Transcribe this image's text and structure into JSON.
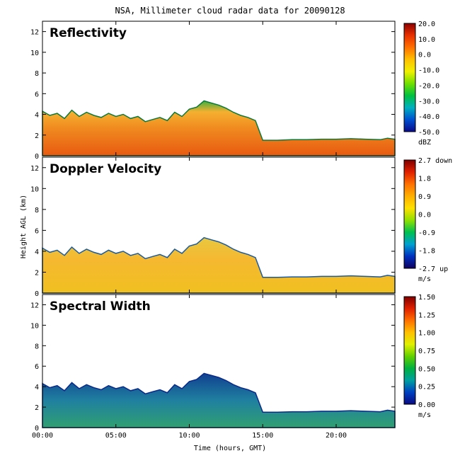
{
  "title": "NSA, Millimeter cloud radar data for 20090128",
  "xlabel": "Time (hours, GMT)",
  "ylabel": "Height AGL (km)",
  "chart_data": [
    {
      "type": "heatmap",
      "name": "Reflectivity",
      "x_ticks": [
        "00:00",
        "05:00",
        "10:00",
        "15:00",
        "20:00"
      ],
      "x_tick_values": [
        0,
        5,
        10,
        15,
        20
      ],
      "xlim": [
        0,
        24
      ],
      "y_ticks": [
        0,
        2,
        4,
        6,
        8,
        10,
        12
      ],
      "ylim": [
        0,
        13
      ],
      "colorbar": {
        "ticks": [
          "20.0",
          "10.0",
          "0.0",
          "-10.0",
          "-20.0",
          "-30.0",
          "-40.0",
          "-50.0"
        ],
        "range": [
          -50,
          20
        ],
        "units": "dBZ"
      }
    },
    {
      "type": "heatmap",
      "name": "Doppler Velocity",
      "x_ticks": [
        "00:00",
        "05:00",
        "10:00",
        "15:00",
        "20:00"
      ],
      "x_tick_values": [
        0,
        5,
        10,
        15,
        20
      ],
      "xlim": [
        0,
        24
      ],
      "y_ticks": [
        0,
        2,
        4,
        6,
        8,
        10,
        12
      ],
      "ylim": [
        0,
        13
      ],
      "colorbar": {
        "ticks": [
          "2.7 down",
          "1.8",
          "0.9",
          "0.0",
          "-0.9",
          "-1.8",
          "-2.7 up"
        ],
        "range": [
          -2.7,
          2.7
        ],
        "units": "m/s"
      }
    },
    {
      "type": "heatmap",
      "name": "Spectral Width",
      "x_ticks": [
        "00:00",
        "05:00",
        "10:00",
        "15:00",
        "20:00"
      ],
      "x_tick_values": [
        0,
        5,
        10,
        15,
        20
      ],
      "xlim": [
        0,
        24
      ],
      "y_ticks": [
        0,
        2,
        4,
        6,
        8,
        10,
        12
      ],
      "ylim": [
        0,
        13
      ],
      "colorbar": {
        "ticks": [
          "1.50",
          "1.25",
          "1.00",
          "0.75",
          "0.50",
          "0.25",
          "0.00"
        ],
        "range": [
          0,
          1.5
        ],
        "units": "m/s"
      }
    }
  ],
  "cloud_profile": {
    "hours": [
      0,
      0.5,
      1,
      1.5,
      2,
      2.5,
      3,
      3.5,
      4,
      4.5,
      5,
      5.5,
      6,
      6.5,
      7,
      7.5,
      8,
      8.5,
      9,
      9.5,
      10,
      10.5,
      11,
      11.5,
      12,
      12.5,
      13,
      13.5,
      14,
      14.5,
      15,
      16,
      17,
      18,
      19,
      20,
      21,
      22,
      23,
      23.5,
      24
    ],
    "top_km": [
      4.3,
      3.9,
      4.1,
      3.6,
      4.4,
      3.8,
      4.2,
      3.9,
      3.7,
      4.1,
      3.8,
      4.0,
      3.6,
      3.8,
      3.3,
      3.5,
      3.7,
      3.4,
      4.2,
      3.8,
      4.5,
      4.7,
      5.3,
      5.1,
      4.9,
      4.6,
      4.2,
      3.9,
      3.7,
      3.4,
      1.5,
      1.5,
      1.55,
      1.55,
      1.6,
      1.6,
      1.65,
      1.6,
      1.55,
      1.7,
      1.6
    ]
  }
}
